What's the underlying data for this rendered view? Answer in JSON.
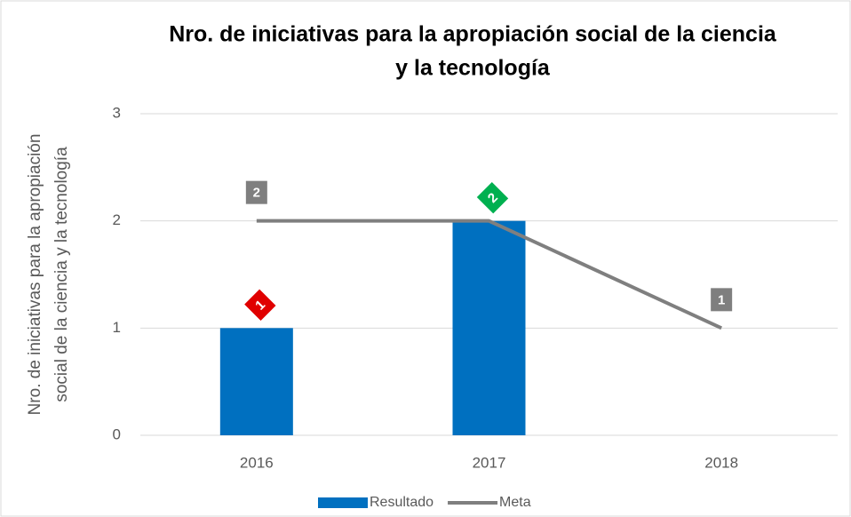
{
  "chart_data": {
    "type": "combo",
    "title": [
      "Nro. de iniciativas para la apropiación social de la ciencia",
      "y la tecnología"
    ],
    "y_label": [
      "Nro. de iniciativas para la apropiación",
      "social de la ciencia y la tecnología"
    ],
    "categories": [
      "2016",
      "2017",
      "2018"
    ],
    "series": [
      {
        "name": "Resultado",
        "type": "bar",
        "color": "#0070c0",
        "values": [
          1,
          2,
          null
        ],
        "label_colors": [
          "#e00000",
          "#00b050",
          null
        ]
      },
      {
        "name": "Meta",
        "type": "line",
        "color": "#7f7f7f",
        "values": [
          2,
          2,
          1
        ],
        "label_colors": [
          "#7f7f7f",
          null,
          "#7f7f7f"
        ]
      }
    ],
    "ylim": [
      0,
      3
    ],
    "yticks": [
      0,
      1,
      2,
      3
    ],
    "grid": true,
    "legend": "bottom"
  }
}
